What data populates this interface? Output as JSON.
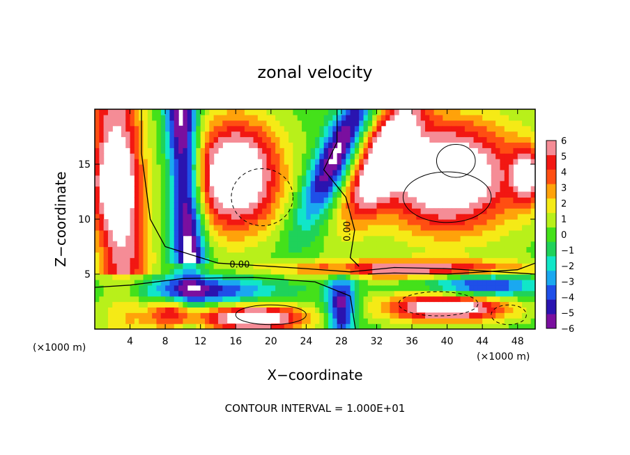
{
  "chart_data": {
    "type": "heatmap",
    "title": "zonal velocity",
    "xlabel": "X−coordinate",
    "ylabel": "Z−coordinate",
    "x_unit_label": "(×1000 m)",
    "z_unit_label": "(×1000 m)",
    "xlim": [
      0,
      50
    ],
    "ylim": [
      0,
      20
    ],
    "x_ticks": [
      4,
      8,
      12,
      16,
      20,
      24,
      28,
      32,
      36,
      40,
      44,
      48
    ],
    "y_ticks": [
      5,
      10,
      15
    ],
    "colorbar": {
      "ticks": [
        "6",
        "5",
        "4",
        "3",
        "2",
        "1",
        "0",
        "−1",
        "−2",
        "−3",
        "−4",
        "−5",
        "−6"
      ],
      "range": [
        -6,
        6
      ],
      "colors": [
        "#7a0f9f",
        "#2a14b0",
        "#1f4fe8",
        "#1aa8f0",
        "#11e6c8",
        "#1fd25a",
        "#44e11a",
        "#b8f01a",
        "#f5ea16",
        "#ffa20a",
        "#ff4e12",
        "#f21712",
        "#f58c96"
      ]
    },
    "contour_labels": [
      "0.00",
      "0.00"
    ],
    "contour_interval_text": "CONTOUR INTERVAL = 1.000E+01",
    "out_of_range_color": "#ffffff"
  }
}
